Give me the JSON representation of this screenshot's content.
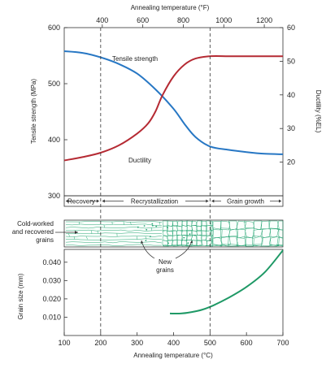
{
  "chart_data": [
    {
      "type": "line",
      "top_axis": {
        "label": "Annealing temperature (°F)",
        "ticks": [
          400,
          600,
          800,
          1000,
          1200
        ]
      },
      "x": {
        "label": "Annealing temperature (°C)",
        "range": [
          100,
          700
        ],
        "ticks": [
          100,
          200,
          300,
          400,
          500,
          600,
          700
        ]
      },
      "y_left": {
        "label": "Tensile strength (MPa)",
        "range": [
          300,
          600
        ],
        "ticks": [
          300,
          400,
          500,
          600
        ]
      },
      "y_right": {
        "label": "Ductility (%EL)",
        "range": [
          10,
          60
        ],
        "ticks": [
          20,
          30,
          40,
          50,
          60
        ]
      },
      "series": [
        {
          "name": "Tensile strength",
          "axis": "left",
          "color": "#2777c4",
          "points": [
            [
              100,
              558
            ],
            [
              150,
              555
            ],
            [
              200,
              547
            ],
            [
              250,
              535
            ],
            [
              300,
              518
            ],
            [
              350,
              490
            ],
            [
              400,
              455
            ],
            [
              430,
              428
            ],
            [
              460,
              405
            ],
            [
              500,
              388
            ],
            [
              550,
              382
            ],
            [
              600,
              378
            ],
            [
              650,
              375
            ],
            [
              700,
              374
            ]
          ]
        },
        {
          "name": "Ductility",
          "axis": "right",
          "color": "#b52a33",
          "points": [
            [
              100,
              20.5
            ],
            [
              150,
              21.5
            ],
            [
              200,
              22.8
            ],
            [
              250,
              25
            ],
            [
              300,
              28.5
            ],
            [
              330,
              31.5
            ],
            [
              350,
              35
            ],
            [
              370,
              40
            ],
            [
              400,
              45.5
            ],
            [
              430,
              49
            ],
            [
              460,
              50.8
            ],
            [
              500,
              51.5
            ],
            [
              550,
              51.5
            ],
            [
              600,
              51.5
            ],
            [
              700,
              51.5
            ]
          ]
        }
      ],
      "vlines": [
        200,
        500
      ],
      "regions": [
        "Recovery",
        "Recrystallization",
        "Grain growth"
      ]
    },
    {
      "type": "line",
      "x": {
        "label": "Annealing temperature (°C)",
        "range": [
          100,
          700
        ],
        "ticks": [
          100,
          200,
          300,
          400,
          500,
          600,
          700
        ]
      },
      "y": {
        "label": "Grain size (mm)",
        "range": [
          0,
          0.047
        ],
        "ticks": [
          0.01,
          0.02,
          0.03,
          0.04
        ]
      },
      "series": [
        {
          "name": "",
          "color": "#1f9966",
          "points": [
            [
              390,
              0.012
            ],
            [
              420,
              0.012
            ],
            [
              450,
              0.0128
            ],
            [
              480,
              0.0142
            ],
            [
              510,
              0.0165
            ],
            [
              550,
              0.0205
            ],
            [
              600,
              0.0265
            ],
            [
              650,
              0.0345
            ],
            [
              700,
              0.0465
            ]
          ]
        }
      ],
      "vlines": [
        200,
        500
      ]
    }
  ],
  "labels": {
    "top_axis": "Annealing temperature (°F)",
    "bottom_axis": "Annealing temperature (°C)",
    "left_axis_top": "Tensile strength (MPa)",
    "right_axis_top": "Ductility (%EL)",
    "left_axis_bottom": "Grain size (mm)",
    "series_tensile": "Tensile strength",
    "series_ductility": "Ductility",
    "region_recovery": "Recovery",
    "region_recryst": "Recrystallization",
    "region_growth": "Grain growth",
    "cold_worked_1": "Cold-worked",
    "cold_worked_2": "and recovered",
    "cold_worked_3": "grains",
    "new_grains_1": "New",
    "new_grains_2": "grains"
  },
  "colors": {
    "tensile": "#2777c4",
    "ductility": "#b52a33",
    "grain": "#1f9966",
    "microstructure": "#2aa676"
  }
}
